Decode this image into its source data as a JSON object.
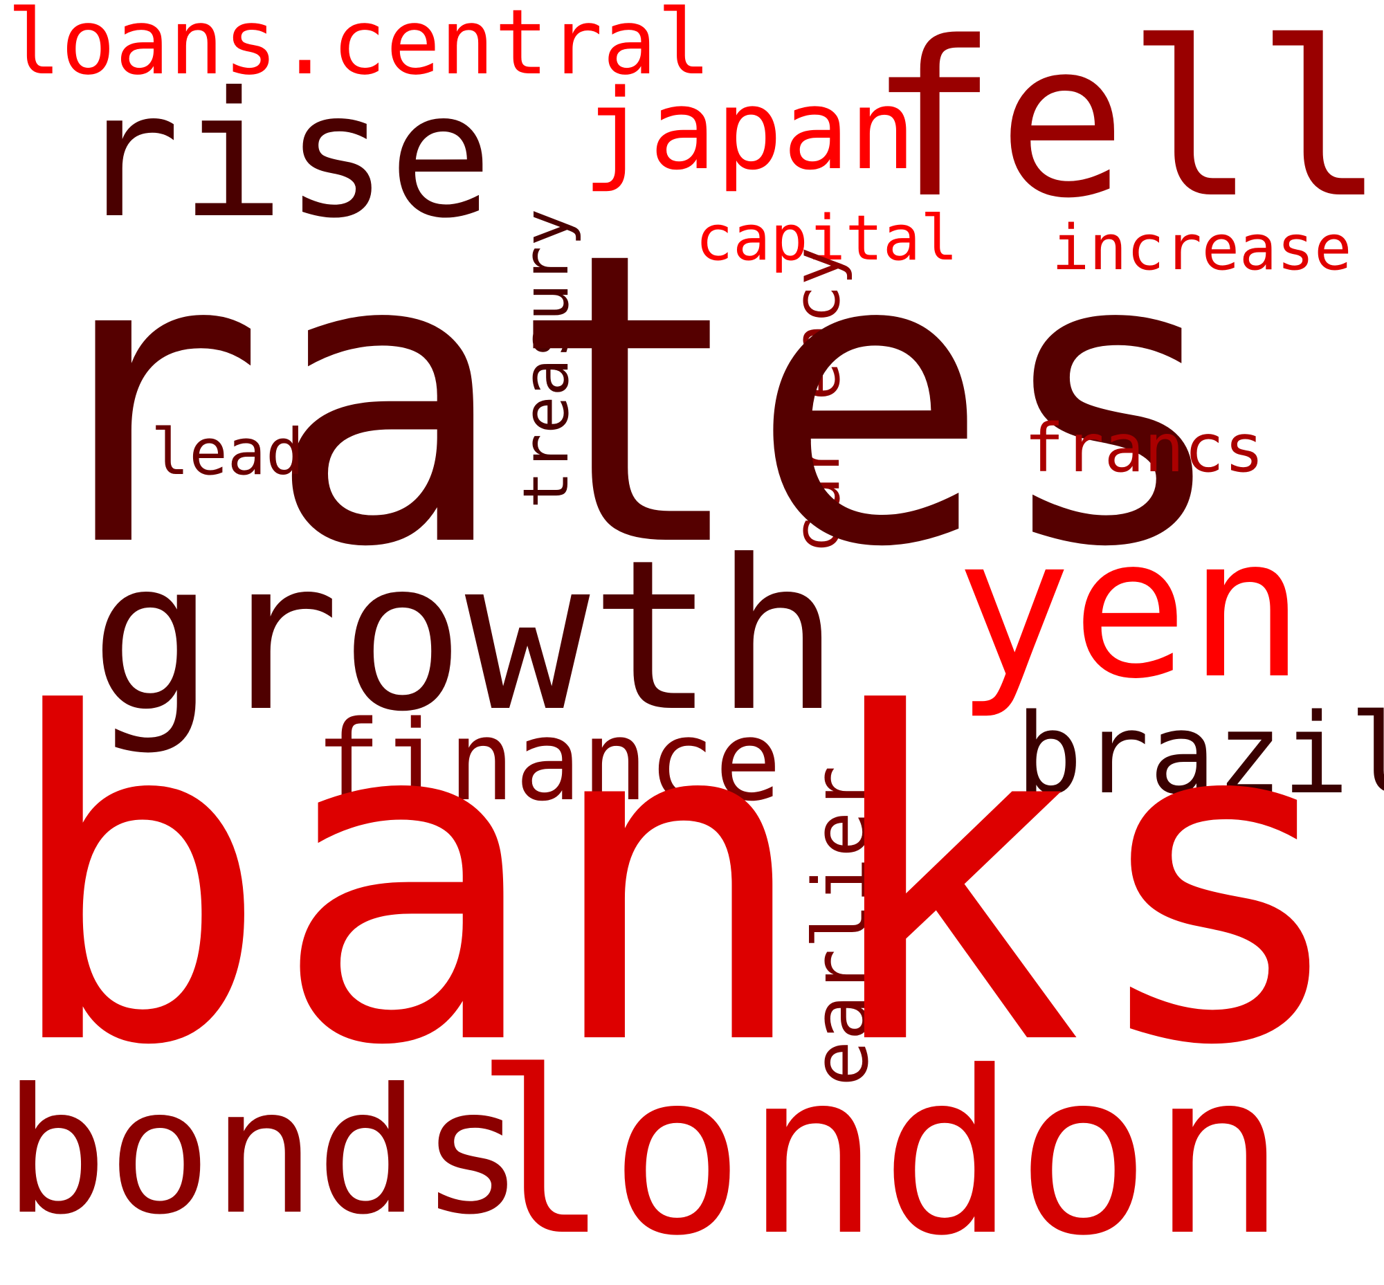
{
  "words": {
    "loans_central": {
      "text": "loans.central",
      "color": "#ff0000"
    },
    "rise": {
      "text": "rise",
      "color": "#4a0000"
    },
    "japan": {
      "text": "japan",
      "color": "#ff0000"
    },
    "fell": {
      "text": "fell",
      "color": "#990000"
    },
    "capital": {
      "text": "capital",
      "color": "#ff0000"
    },
    "increase": {
      "text": "increase",
      "color": "#e00000"
    },
    "treasury": {
      "text": "treasury",
      "color": "#4a0000"
    },
    "currency": {
      "text": "currency",
      "color": "#8b0000"
    },
    "rates": {
      "text": "rates",
      "color": "#550000"
    },
    "lead": {
      "text": "lead",
      "color": "#6b0000"
    },
    "francs": {
      "text": "francs",
      "color": "#aa0000"
    },
    "growth": {
      "text": "growth",
      "color": "#4f0000"
    },
    "yen": {
      "text": "yen",
      "color": "#ff0000"
    },
    "finance": {
      "text": "finance",
      "color": "#7a0000"
    },
    "brazil": {
      "text": "brazil",
      "color": "#3a0000"
    },
    "earlier": {
      "text": "earlier",
      "color": "#780000"
    },
    "banks": {
      "text": "banks",
      "color": "#dd0000"
    },
    "bonds": {
      "text": "bonds",
      "color": "#8b0000"
    },
    "london": {
      "text": "london",
      "color": "#d40000"
    }
  }
}
